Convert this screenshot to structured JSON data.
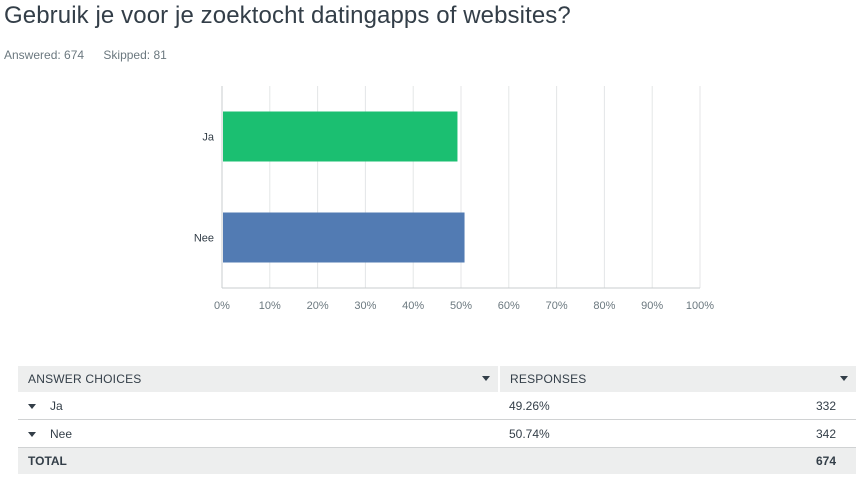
{
  "question": "Gebruik je voor je zoektocht datingapps of websites?",
  "answered": "Answered: 674",
  "skipped": "Skipped: 81",
  "chart_data": {
    "type": "bar",
    "orientation": "horizontal",
    "categories": [
      "Ja",
      "Nee"
    ],
    "values": [
      49.26,
      50.74
    ],
    "colors": [
      "#1bbf71",
      "#527bb3"
    ],
    "xlim": [
      0,
      100
    ],
    "xticks": [
      "0%",
      "10%",
      "20%",
      "30%",
      "40%",
      "50%",
      "60%",
      "70%",
      "80%",
      "90%",
      "100%"
    ],
    "grid": true
  },
  "table": {
    "header_choices": "ANSWER CHOICES",
    "header_responses": "RESPONSES",
    "rows": [
      {
        "choice": "Ja",
        "percent": "49.26%",
        "count": "332"
      },
      {
        "choice": "Nee",
        "percent": "50.74%",
        "count": "342"
      }
    ],
    "total_label": "TOTAL",
    "total_count": "674"
  }
}
